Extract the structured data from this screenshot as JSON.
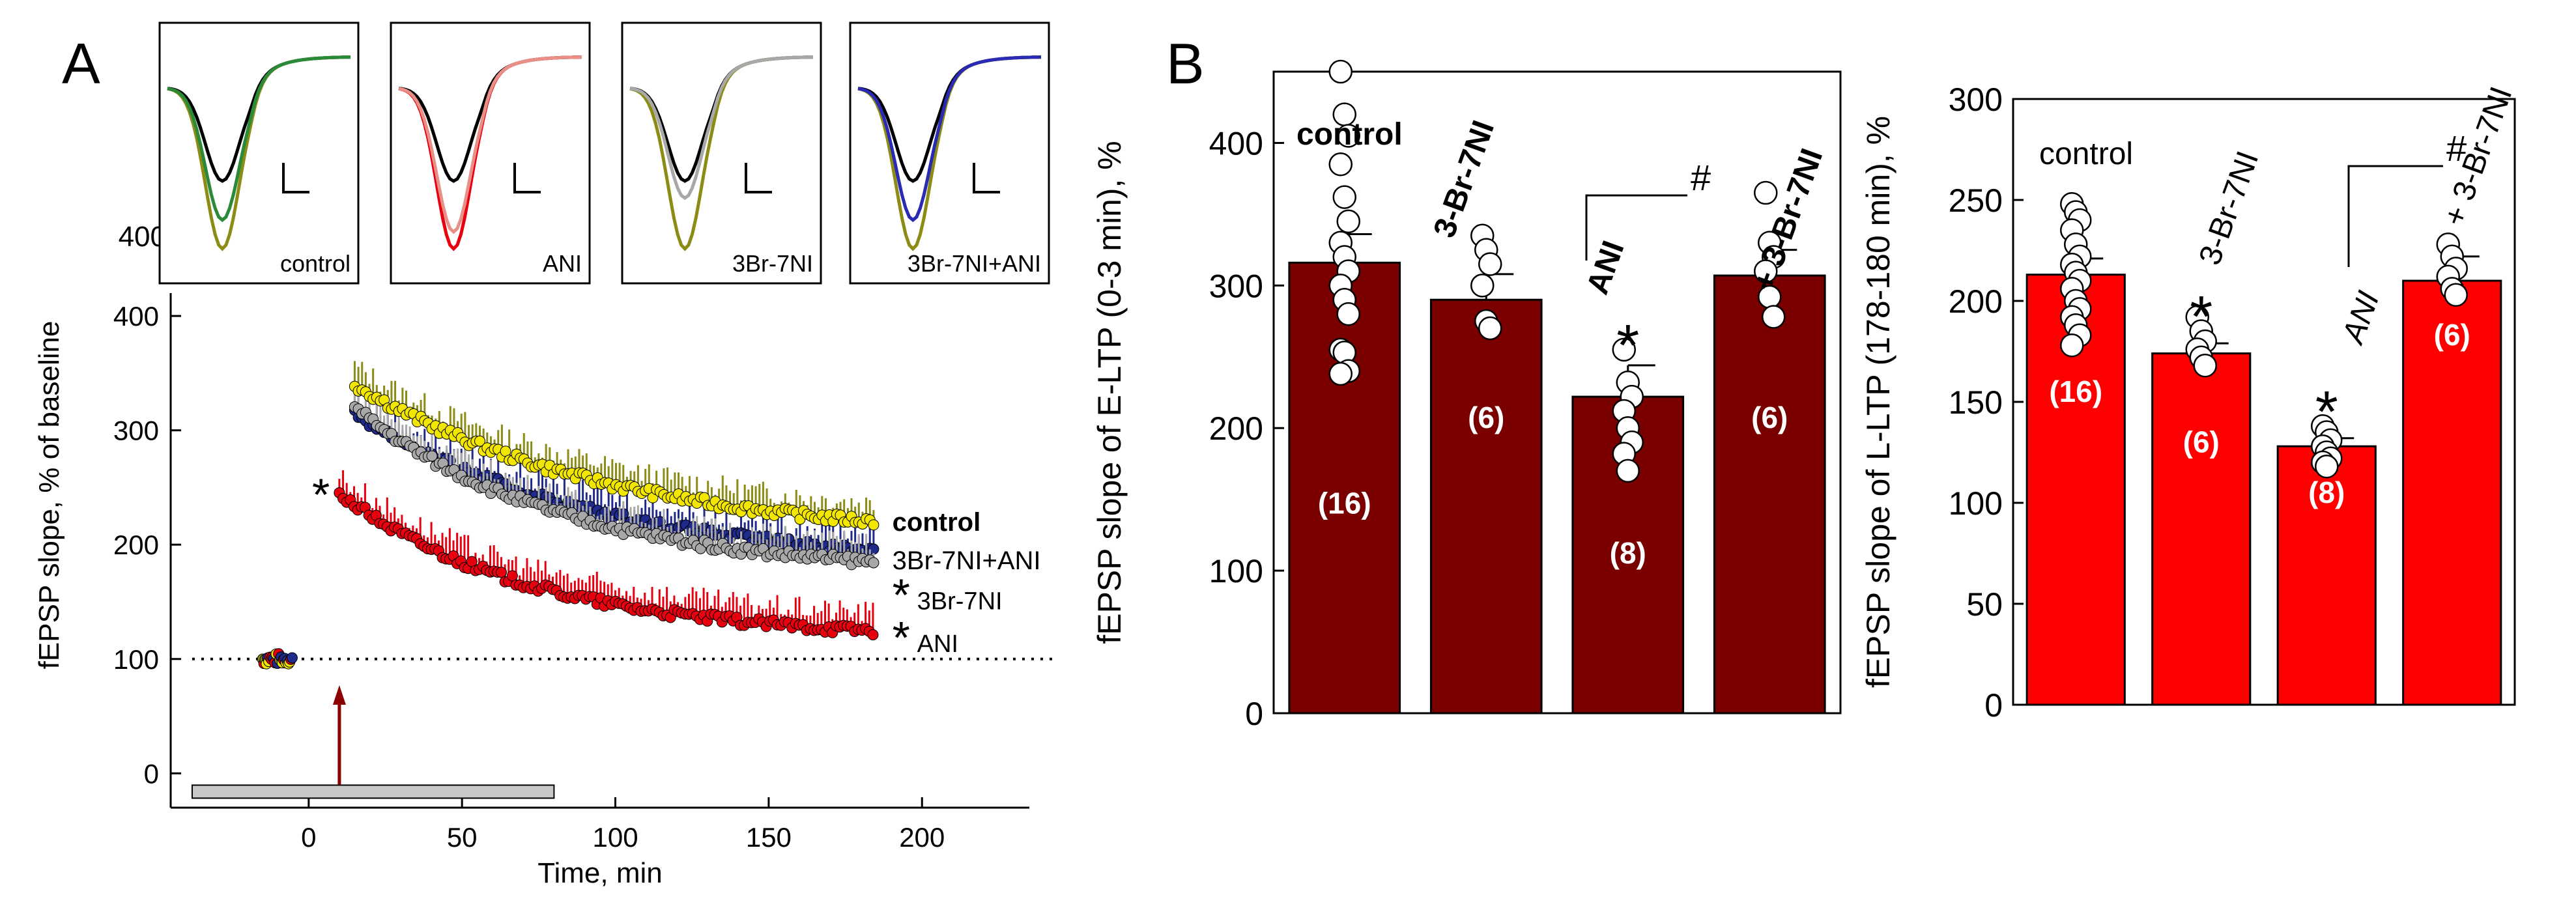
{
  "panels": {
    "a_label": "A",
    "b_label": "B"
  },
  "colors": {
    "control": "#8c8c14",
    "ani": "#e8000f",
    "br7ni": "#a8a8a8",
    "combo": "#1f2a8a",
    "black": "#000000",
    "trace_green": "#2a8a3a",
    "trace_pink": "#e89088",
    "trace_blue": "#2a2ab4",
    "bar_dark": "#7a0000",
    "bar_red": "#ff0000",
    "arrow": "#8b0000",
    "stim_bar": "#c8c8c8"
  },
  "chart_data": [
    {
      "id": "time-course",
      "type": "scatter",
      "xlabel": "Time, min",
      "ylabel": "fEPSP slope, % of baseline",
      "xlim": [
        -45,
        235
      ],
      "ylim": [
        -30,
        420
      ],
      "x_ticks": [
        "0",
        "50",
        "100",
        "150",
        "200"
      ],
      "y_ticks": [
        "0",
        "100",
        "200",
        "300",
        "400"
      ],
      "baseline": 100,
      "baseline_x": [
        -15,
        -5
      ],
      "stimulus_arrow_x": 10,
      "drug_bar_x": [
        -38,
        80
      ],
      "series": [
        {
          "name": "control",
          "label": "control",
          "color_key": "control",
          "start": 340,
          "end": 220,
          "decay": 0.012,
          "x_start": 15,
          "x_end": 185,
          "star": false
        },
        {
          "name": "3Br-7NI",
          "label": "3Br-7NI",
          "color_key": "br7ni",
          "start": 320,
          "end": 185,
          "decay": 0.015,
          "x_start": 15,
          "x_end": 185,
          "star": true
        },
        {
          "name": "3Br-7NI+ANI",
          "label": "3Br-7NI+ANI",
          "color_key": "combo",
          "start": 315,
          "end": 195,
          "decay": 0.013,
          "x_start": 15,
          "x_end": 185,
          "star": false
        },
        {
          "name": "ANI",
          "label": "ANI",
          "color_key": "ani",
          "start": 245,
          "end": 125,
          "decay": 0.016,
          "x_start": 10,
          "x_end": 185,
          "star": true
        }
      ],
      "early_star": "*"
    },
    {
      "id": "e-ltp",
      "type": "bar",
      "ylabel": "fEPSP slope of E-LTP (0-3 min), %",
      "ylim": [
        0,
        450
      ],
      "y_ticks": [
        "0",
        "100",
        "200",
        "300",
        "400"
      ],
      "categories": [
        "control",
        "3-Br-7NI",
        "ANI",
        "+ 3-Br-7NI"
      ],
      "values": [
        316,
        290,
        222,
        307
      ],
      "errors": [
        20,
        18,
        22,
        18
      ],
      "n_labels": [
        "(16)",
        "(6)",
        "(8)",
        "(6)"
      ],
      "n_label_y": [
        140,
        200,
        105,
        200
      ],
      "stars": [
        "",
        "",
        "*",
        ""
      ],
      "points": [
        [
          450,
          420,
          405,
          385,
          362,
          345,
          330,
          320,
          310,
          300,
          290,
          280,
          255,
          253,
          240,
          238
        ],
        [
          335,
          325,
          315,
          300,
          275,
          270
        ],
        [
          255,
          232,
          222,
          212,
          200,
          190,
          182,
          170
        ],
        [
          365,
          330,
          320,
          310,
          292,
          278
        ]
      ],
      "significance": "#",
      "label_bold": true
    },
    {
      "id": "l-ltp",
      "type": "bar",
      "ylabel": "fEPSP slope of L-LTP (178-180 min), %",
      "ylim": [
        0,
        300
      ],
      "y_ticks": [
        "0",
        "50",
        "100",
        "150",
        "200",
        "250",
        "300"
      ],
      "categories": [
        "control",
        "3-Br-7NI",
        "ANI",
        "+ 3-Br-7NI"
      ],
      "values": [
        213,
        174,
        128,
        210
      ],
      "errors": [
        8,
        5,
        4,
        12
      ],
      "n_labels": [
        "(16)",
        "(6)",
        "(8)",
        "(6)"
      ],
      "n_label_y": [
        150,
        125,
        100,
        178
      ],
      "stars": [
        "",
        "*",
        "*",
        ""
      ],
      "points": [
        [
          248,
          244,
          240,
          235,
          228,
          222,
          218,
          214,
          210,
          206,
          200,
          196,
          192,
          188,
          183,
          178
        ],
        [
          192,
          185,
          180,
          176,
          172,
          168
        ],
        [
          138,
          135,
          131,
          128,
          125,
          122,
          120,
          118
        ],
        [
          228,
          222,
          216,
          212,
          206,
          203
        ]
      ],
      "significance": "#",
      "label_bold": false
    }
  ],
  "insets": {
    "labels": [
      "control",
      "ANI",
      "3Br-7NI",
      "3Br-7NI+ANI"
    ],
    "colors": [
      [
        "black",
        "control",
        "trace_green"
      ],
      [
        "black",
        "ani",
        "trace_pink"
      ],
      [
        "black",
        "control",
        "br7ni"
      ],
      [
        "black",
        "control",
        "trace_blue"
      ]
    ],
    "depths": [
      [
        0.55,
        0.95,
        0.78
      ],
      [
        0.55,
        0.95,
        0.85
      ],
      [
        0.55,
        0.95,
        0.65
      ],
      [
        0.55,
        0.95,
        0.78
      ]
    ],
    "y_label": "400"
  }
}
